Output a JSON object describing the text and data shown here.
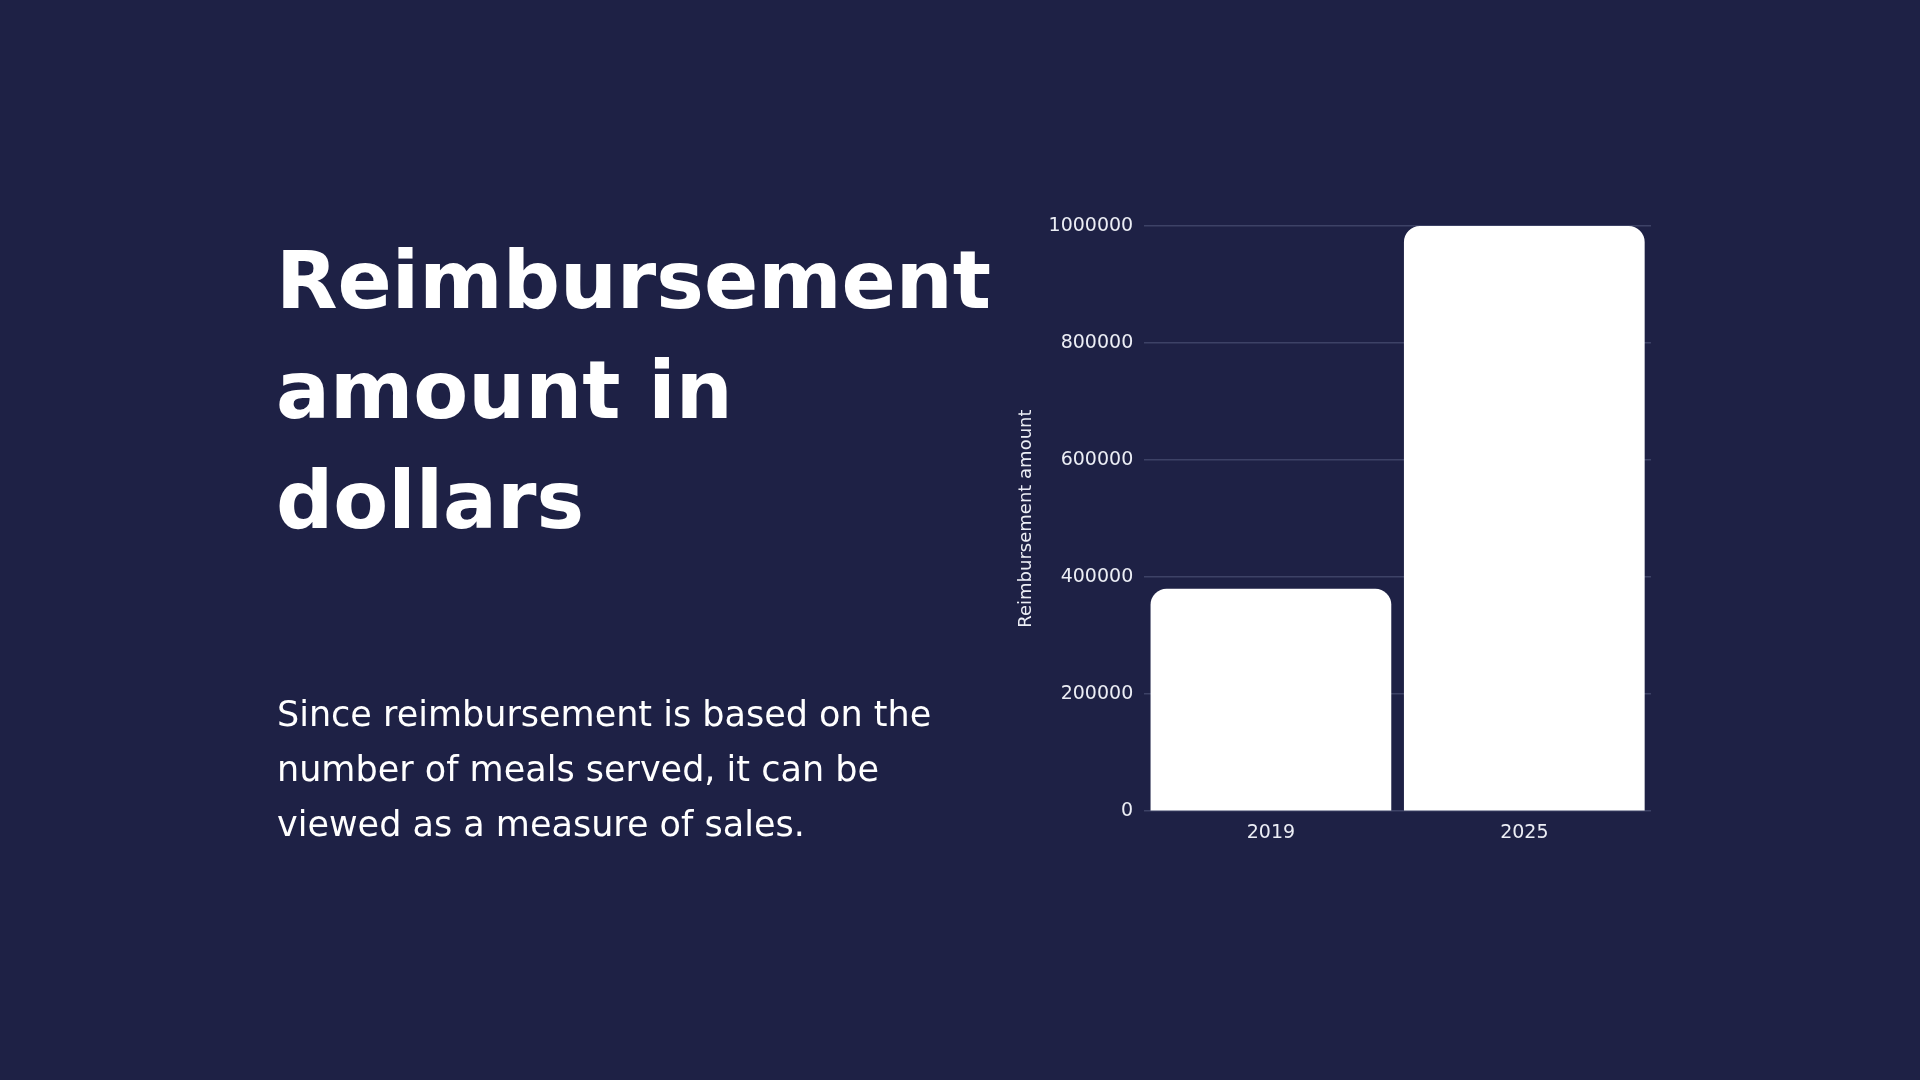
{
  "chart_data": {
    "type": "bar",
    "title": "Reimbursement amount in dollars",
    "annotations": [
      "Since reimbursement is based on the number of meals served, it can be viewed as a measure of sales."
    ],
    "categories": [
      "2019",
      "2025"
    ],
    "values": [
      380000,
      1000000
    ],
    "color": "#ffffff",
    "ylabel": "Reimbursement amount",
    "ylim": [
      0,
      1000000
    ],
    "yticks": [
      0,
      200000,
      400000,
      600000,
      800000,
      1000000
    ],
    "grid": "y"
  }
}
